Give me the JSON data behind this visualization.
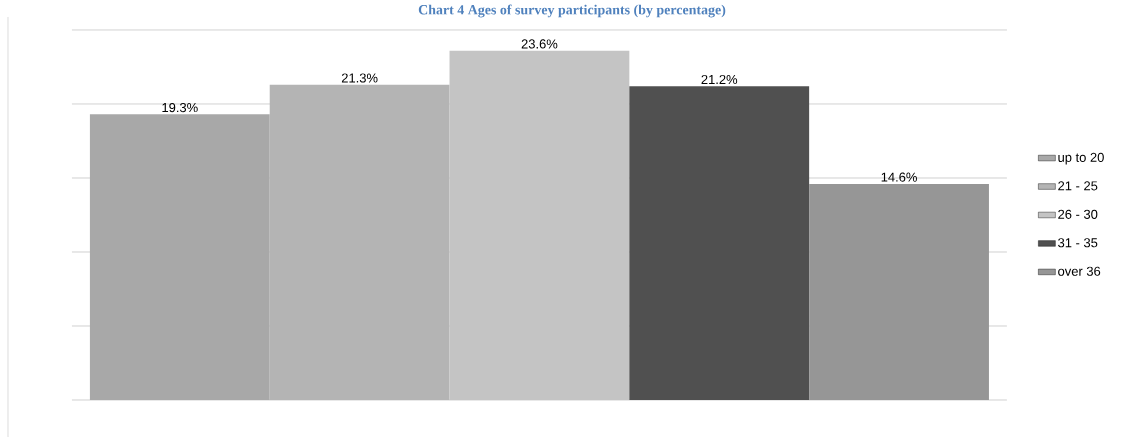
{
  "chart_data": {
    "type": "bar",
    "title": "Chart 4 Ages of survey participants (by percentage)",
    "categories": [
      null
    ],
    "series": [
      {
        "name": "up to 20",
        "color": "#a8a8a8",
        "values": [
          19.3
        ],
        "value_labels": [
          "19.3%"
        ]
      },
      {
        "name": "21 - 25",
        "color": "#b4b4b4",
        "values": [
          21.3
        ],
        "value_labels": [
          "21.3%"
        ]
      },
      {
        "name": "26 - 30",
        "color": "#c4c4c4",
        "values": [
          23.6
        ],
        "value_labels": [
          "23.6%"
        ]
      },
      {
        "name": "31 - 35",
        "color": "#505050",
        "values": [
          21.2
        ],
        "value_labels": [
          "21.2%"
        ]
      },
      {
        "name": "over 36",
        "color": "#969696",
        "values": [
          14.6
        ],
        "value_labels": [
          "14.6%"
        ]
      }
    ],
    "ylim": [
      0,
      25
    ],
    "yticks": [
      {
        "value": 0,
        "label": null
      },
      {
        "value": 5,
        "label": null
      },
      {
        "value": 10,
        "label": null
      },
      {
        "value": 15,
        "label": null
      },
      {
        "value": 20,
        "label": null
      },
      {
        "value": 25,
        "label": null
      }
    ],
    "grid": "y",
    "legend": "right"
  }
}
